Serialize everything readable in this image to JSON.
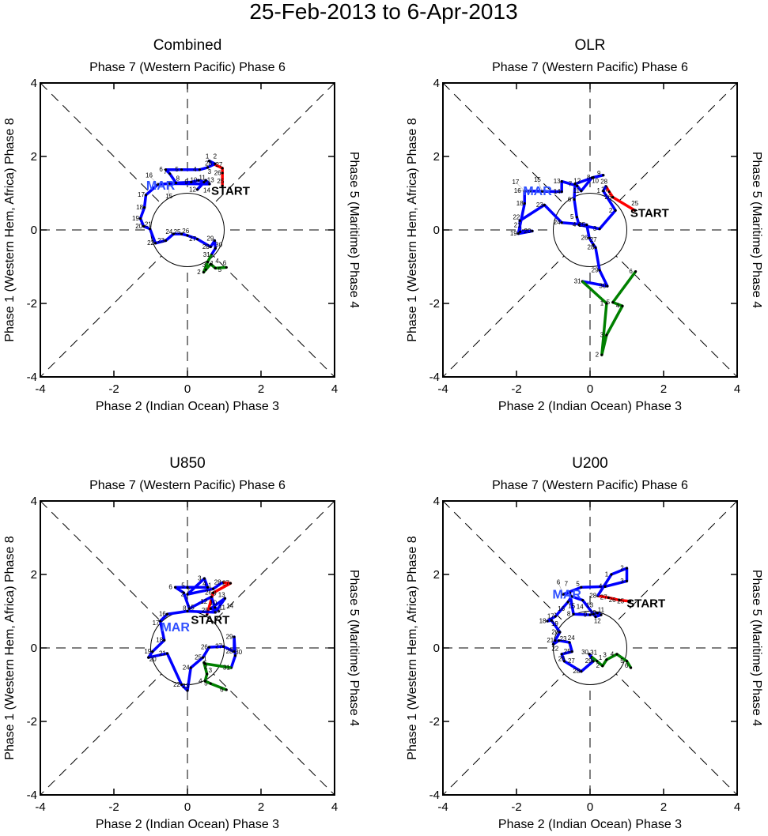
{
  "title": "25-Feb-2013 to 6-Apr-2013",
  "chart_data": [
    {
      "type": "line",
      "title": "Combined",
      "top_label": "Phase 7 (Western Pacific) Phase 6",
      "xlabel": "Phase 2 (Indian Ocean) Phase 3",
      "ylabel": "Phase 1 (Western Hem, Africa) Phase 8",
      "right_label": "Phase 5 (Maritime) Phase 4",
      "xlim": [
        -4,
        4
      ],
      "ylim": [
        -4,
        4
      ],
      "xticks": [
        "-4",
        "-2",
        "0",
        "2",
        "4"
      ],
      "yticks": [
        "-4",
        "-2",
        "0",
        "2",
        "4"
      ],
      "start_label": "START",
      "month_label": "MAR",
      "series": [
        {
          "name": "Feb",
          "color": "#ff0000",
          "days": [
            25,
            26,
            27,
            28
          ],
          "points": [
            [
              0.95,
              1.2
            ],
            [
              0.95,
              1.55
            ],
            [
              0.95,
              1.68
            ],
            [
              0.7,
              1.8
            ]
          ]
        },
        {
          "name": "Mar",
          "color": "#0000ff",
          "days": [
            1,
            2,
            3,
            4,
            5,
            6,
            7,
            8,
            9,
            10,
            11,
            12,
            13,
            14,
            15,
            16,
            17,
            18,
            19,
            20,
            21,
            22,
            23,
            24,
            25,
            26,
            27,
            28,
            29,
            30,
            31
          ],
          "points": [
            [
              0.59,
              1.88
            ],
            [
              0.75,
              1.8
            ],
            [
              0.55,
              1.7
            ],
            [
              0.33,
              1.64
            ],
            [
              -0.16,
              1.64
            ],
            [
              -0.59,
              1.64
            ],
            [
              -0.48,
              1.53
            ],
            [
              -0.31,
              1.28
            ],
            [
              0.1,
              1.3
            ],
            [
              0.3,
              1.35
            ],
            [
              0.45,
              1.3
            ],
            [
              0.27,
              1.1
            ],
            [
              0.5,
              1.35
            ],
            [
              0.6,
              1.25
            ],
            [
              -0.5,
              1.26
            ],
            [
              -0.8,
              1.24
            ],
            [
              -1.13,
              0.95
            ],
            [
              -1.17,
              0.61
            ],
            [
              -1.28,
              0.31
            ],
            [
              -1.19,
              0.1
            ],
            [
              -1.02,
              0.03
            ],
            [
              -0.87,
              -0.36
            ],
            [
              -0.59,
              -0.29
            ],
            [
              -0.38,
              -0.11
            ],
            [
              -0.16,
              -0.11
            ],
            [
              0,
              -0.15
            ],
            [
              0.27,
              -0.25
            ],
            [
              0.63,
              -0.46
            ],
            [
              0.74,
              -0.29
            ],
            [
              0.76,
              -0.5
            ],
            [
              0.65,
              -0.68
            ]
          ]
        },
        {
          "name": "Apr",
          "color": "#008000",
          "days": [
            1,
            2,
            3,
            4,
            5,
            6
          ],
          "points": [
            [
              0.55,
              -0.87
            ],
            [
              0.44,
              -1.15
            ],
            [
              0.5,
              -1.08
            ],
            [
              0.63,
              -0.93
            ],
            [
              0.76,
              -1.04
            ],
            [
              1.06,
              -1.02
            ]
          ]
        }
      ]
    },
    {
      "type": "line",
      "title": "OLR",
      "top_label": "Phase 7 (Western Pacific) Phase 6",
      "xlabel": "Phase 2 (Indian Ocean) Phase 3",
      "ylabel": "Phase 1 (Western Hem, Africa) Phase 8",
      "right_label": "Phase 5 (Maritime) Phase 4",
      "xlim": [
        -4,
        4
      ],
      "ylim": [
        -4,
        4
      ],
      "xticks": [
        "-4",
        "-2",
        "0",
        "2",
        "4"
      ],
      "yticks": [
        "-4",
        "-2",
        "0",
        "2",
        "4"
      ],
      "start_label": "START",
      "month_label": "MAR",
      "series": [
        {
          "name": "Feb",
          "color": "#ff0000",
          "days": [
            25,
            26,
            27,
            28
          ],
          "points": [
            [
              1.22,
              0.53
            ],
            [
              0.62,
              0.89
            ],
            [
              0.52,
              1.04
            ],
            [
              0.43,
              1.19
            ]
          ]
        },
        {
          "name": "Mar",
          "color": "#0000ff",
          "days": [
            1,
            2,
            3,
            4,
            5,
            6,
            7,
            8,
            9,
            10,
            11,
            12,
            13,
            14,
            15,
            16,
            17,
            18,
            19,
            20,
            21,
            22,
            23,
            24,
            25,
            26,
            27,
            28,
            29,
            30,
            31
          ],
          "points": [
            [
              0.36,
              1.06
            ],
            [
              0.69,
              0.53
            ],
            [
              0.26,
              0.03
            ],
            [
              -0.3,
              0.14
            ],
            [
              -0.36,
              0.35
            ],
            [
              -0.43,
              0.83
            ],
            [
              -0.41,
              1.25
            ],
            [
              0.09,
              1.43
            ],
            [
              0.36,
              1.49
            ],
            [
              0.05,
              1.42
            ],
            [
              -0.24,
              1.06
            ],
            [
              -0.35,
              1.2
            ],
            [
              -0.77,
              1.32
            ],
            [
              -0.77,
              1.04
            ],
            [
              -1.3,
              1.05
            ],
            [
              -1.63,
              1.06
            ],
            [
              -1.78,
              1.06
            ],
            [
              -1.78,
              0.72
            ],
            [
              -1.95,
              -0.1
            ],
            [
              -1.57,
              -0.03
            ],
            [
              -1.9,
              -0.05
            ],
            [
              -1.91,
              0.25
            ],
            [
              -1.24,
              0.68
            ],
            [
              -0.77,
              0.2
            ],
            [
              -0.09,
              0.14
            ],
            [
              -0.02,
              -0.22
            ],
            [
              0.09,
              -0.4
            ],
            [
              0.15,
              -0.48
            ],
            [
              0.26,
              -1.1
            ],
            [
              0.47,
              -1.53
            ],
            [
              -0.21,
              -1.4
            ]
          ]
        },
        {
          "name": "Apr",
          "color": "#008000",
          "days": [
            1,
            2,
            3,
            4,
            5,
            6
          ],
          "points": [
            [
              0.45,
              -2.0
            ],
            [
              0.32,
              -3.4
            ],
            [
              0.45,
              -2.86
            ],
            [
              0.88,
              -2.07
            ],
            [
              0.62,
              -1.97
            ],
            [
              1.24,
              -1.13
            ]
          ]
        }
      ]
    },
    {
      "type": "line",
      "title": "U850",
      "top_label": "Phase 7 (Western Pacific) Phase 6",
      "xlabel": "Phase 2 (Indian Ocean) Phase 3",
      "ylabel": "Phase 1 (Western Hem, Africa) Phase 8",
      "right_label": "Phase 5 (Maritime) Phase 4",
      "xlim": [
        -4,
        4
      ],
      "ylim": [
        -4,
        4
      ],
      "xticks": [
        "-4",
        "-2",
        "0",
        "2",
        "4"
      ],
      "yticks": [
        "-4",
        "-2",
        "0",
        "2",
        "4"
      ],
      "start_label": "START",
      "month_label": "MAR",
      "series": [
        {
          "name": "Feb",
          "color": "#ff0000",
          "days": [
            25,
            26,
            27,
            28
          ],
          "points": [
            [
              0.53,
              0.9
            ],
            [
              0.7,
              1.5
            ],
            [
              1.17,
              1.76
            ],
            [
              0.95,
              1.78
            ]
          ]
        },
        {
          "name": "Mar",
          "color": "#0000ff",
          "days": [
            1,
            2,
            3,
            4,
            5,
            6,
            7,
            8,
            9,
            10,
            11,
            12,
            13,
            14,
            15,
            16,
            17,
            18,
            19,
            20,
            21,
            22,
            23,
            24,
            25,
            26,
            27,
            28,
            29,
            30,
            31
          ],
          "points": [
            [
              0.7,
              1.61
            ],
            [
              0.0,
              1.46
            ],
            [
              0.46,
              1.89
            ],
            [
              0.55,
              1.65
            ],
            [
              0,
              1.65
            ],
            [
              -0.33,
              1.65
            ],
            [
              -0.1,
              1.5
            ],
            [
              0.05,
              1.07
            ],
            [
              0.65,
              1.39
            ],
            [
              0.75,
              1.1
            ],
            [
              0.85,
              1.0
            ],
            [
              0.63,
              1.07
            ],
            [
              1.02,
              1.35
            ],
            [
              0.76,
              0.97
            ],
            [
              0.0,
              1.0
            ],
            [
              -0.55,
              0.92
            ],
            [
              -0.74,
              0.73
            ],
            [
              -0.63,
              0.21
            ],
            [
              -0.95,
              -0.1
            ],
            [
              -1.06,
              -0.26
            ],
            [
              -0.55,
              -0.15
            ],
            [
              -0.16,
              -1.0
            ],
            [
              0,
              -1.16
            ],
            [
              0.09,
              -0.54
            ],
            [
              0.42,
              -0.26
            ],
            [
              0.59,
              0.02
            ],
            [
              0.98,
              0.04
            ],
            [
              1.27,
              -0.1
            ],
            [
              1.27,
              0.3
            ],
            [
              1.3,
              -0.21
            ],
            [
              1.19,
              -0.54
            ]
          ]
        },
        {
          "name": "Apr",
          "color": "#008000",
          "days": [
            1,
            2,
            3,
            4,
            5,
            6
          ],
          "points": [
            [
              0.48,
              -0.43
            ],
            [
              0.45,
              -0.4
            ],
            [
              0.53,
              -0.71
            ],
            [
              0.48,
              -0.9
            ],
            [
              0.63,
              -0.97
            ],
            [
              1.06,
              -1.14
            ]
          ]
        }
      ]
    },
    {
      "type": "line",
      "title": "U200",
      "top_label": "Phase 7 (Western Pacific) Phase 6",
      "xlabel": "Phase 2 (Indian Ocean) Phase 3",
      "ylabel": "Phase 1 (Western Hem, Africa) Phase 8",
      "right_label": "Phase 5 (Maritime) Phase 4",
      "xlim": [
        -4,
        4
      ],
      "ylim": [
        -4,
        4
      ],
      "xticks": [
        "-4",
        "-2",
        "0",
        "2",
        "4"
      ],
      "yticks": [
        "-4",
        "-2",
        "0",
        "2",
        "4"
      ],
      "start_label": "START",
      "month_label": "MAR",
      "series": [
        {
          "name": "Feb",
          "color": "#ff0000",
          "days": [
            25,
            26,
            27,
            28
          ],
          "points": [
            [
              1.09,
              1.27
            ],
            [
              0.8,
              1.3
            ],
            [
              0.5,
              1.37
            ],
            [
              0.21,
              1.42
            ]
          ]
        },
        {
          "name": "Mar",
          "color": "#0000ff",
          "days": [
            1,
            2,
            3,
            4,
            5,
            6,
            7,
            8,
            9,
            10,
            11,
            12,
            13,
            14,
            15,
            16,
            17,
            18,
            19,
            20,
            21,
            22,
            23,
            24,
            25,
            26,
            27,
            28,
            29,
            30,
            31
          ],
          "points": [
            [
              0.58,
              2.0
            ],
            [
              1.0,
              2.17
            ],
            [
              1.0,
              1.82
            ],
            [
              0.41,
              1.67
            ],
            [
              -0.24,
              1.65
            ],
            [
              -0.73,
              1.46
            ],
            [
              -0.55,
              1.5
            ],
            [
              -0.45,
              0.92
            ],
            [
              0.0,
              0.9
            ],
            [
              0.2,
              0.95
            ],
            [
              0.3,
              0.9
            ],
            [
              0.15,
              0.85
            ],
            [
              0.09,
              0.92
            ],
            [
              -0.2,
              1.3
            ],
            [
              -0.5,
              1.4
            ],
            [
              -0.6,
              1.25
            ],
            [
              -0.94,
              0.86
            ],
            [
              -1.16,
              0.73
            ],
            [
              -1.05,
              0.75
            ],
            [
              -0.82,
              0.43
            ],
            [
              -0.95,
              0.2
            ],
            [
              -1.0,
              0.1
            ],
            [
              -0.85,
              0.2
            ],
            [
              -0.56,
              0.15
            ],
            [
              -0.49,
              -0.1
            ],
            [
              -0.77,
              -0.17
            ],
            [
              -0.7,
              -0.36
            ],
            [
              -0.24,
              -0.64
            ],
            [
              0.09,
              -0.36
            ],
            [
              -0.02,
              -0.17
            ],
            [
              0.05,
              -0.25
            ]
          ]
        },
        {
          "name": "Apr",
          "color": "#008000",
          "days": [
            1,
            2,
            3,
            4,
            5,
            6
          ],
          "points": [
            [
              0.19,
              -0.36
            ],
            [
              0.34,
              -0.49
            ],
            [
              0.45,
              -0.32
            ],
            [
              0.73,
              -0.17
            ],
            [
              1.0,
              -0.36
            ],
            [
              1.11,
              -0.54
            ]
          ]
        }
      ]
    }
  ]
}
